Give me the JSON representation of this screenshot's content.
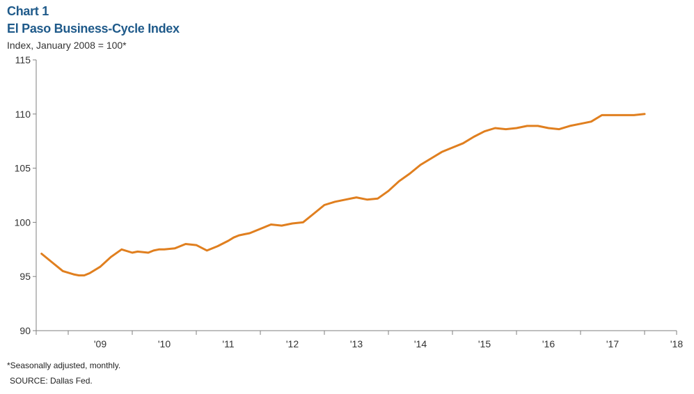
{
  "header": {
    "chart_label": "Chart 1",
    "title": "El Paso Business-Cycle Index",
    "subtitle": "Index, January 2008 = 100*"
  },
  "footer": {
    "note": "*Seasonally adjusted, monthly.",
    "source": "SOURCE: Dallas Fed."
  },
  "colors": {
    "line": "#e07f1f",
    "axis": "#7f7f7f",
    "title": "#1f5a8a"
  },
  "chart_data": {
    "type": "line",
    "title": "El Paso Business-Cycle Index",
    "subtitle": "Index, January 2008 = 100*",
    "xlabel": "",
    "ylabel": "",
    "ylim": [
      90,
      115
    ],
    "yticks": [
      90,
      95,
      100,
      105,
      110,
      115
    ],
    "xlim": [
      "2008-07",
      "2018-07"
    ],
    "x_tick_labels": [
      "'09",
      "'10",
      "'11",
      "'12",
      "'13",
      "'14",
      "'15",
      "'16",
      "'17",
      "'18"
    ],
    "grid": false,
    "legend": "none",
    "series": [
      {
        "x": [
          "2008-08",
          "2008-10",
          "2008-12",
          "2009-02",
          "2009-03",
          "2009-04",
          "2009-05",
          "2009-07",
          "2009-09",
          "2009-11",
          "2010-01",
          "2010-02",
          "2010-04",
          "2010-05",
          "2010-06",
          "2010-07",
          "2010-09",
          "2010-11",
          "2011-01",
          "2011-03",
          "2011-05",
          "2011-07",
          "2011-08",
          "2011-09",
          "2011-10",
          "2011-11",
          "2012-01",
          "2012-03",
          "2012-05",
          "2012-07",
          "2012-09",
          "2012-11",
          "2013-01",
          "2013-03",
          "2013-05",
          "2013-07",
          "2013-09",
          "2013-11",
          "2014-01",
          "2014-03",
          "2014-05",
          "2014-07",
          "2014-09",
          "2014-11",
          "2015-01",
          "2015-03",
          "2015-05",
          "2015-07",
          "2015-09",
          "2015-11",
          "2016-01",
          "2016-03",
          "2016-05",
          "2016-07",
          "2016-09",
          "2016-11",
          "2017-01",
          "2017-03",
          "2017-05",
          "2017-07",
          "2017-09",
          "2017-11",
          "2018-01"
        ],
        "values": [
          97.1,
          96.3,
          95.5,
          95.2,
          95.1,
          95.1,
          95.3,
          95.9,
          96.8,
          97.5,
          97.2,
          97.3,
          97.2,
          97.4,
          97.5,
          97.5,
          97.6,
          98.0,
          97.9,
          97.4,
          97.8,
          98.3,
          98.6,
          98.8,
          98.9,
          99.0,
          99.4,
          99.8,
          99.7,
          99.9,
          100.0,
          100.8,
          101.6,
          101.9,
          102.1,
          102.3,
          102.1,
          102.2,
          102.9,
          103.8,
          104.5,
          105.3,
          105.9,
          106.5,
          106.9,
          107.3,
          107.9,
          108.4,
          108.7,
          108.6,
          108.7,
          108.9,
          108.9,
          108.7,
          108.6,
          108.9,
          109.1,
          109.3,
          109.9,
          109.9,
          109.9,
          109.9,
          110.0
        ]
      }
    ]
  }
}
